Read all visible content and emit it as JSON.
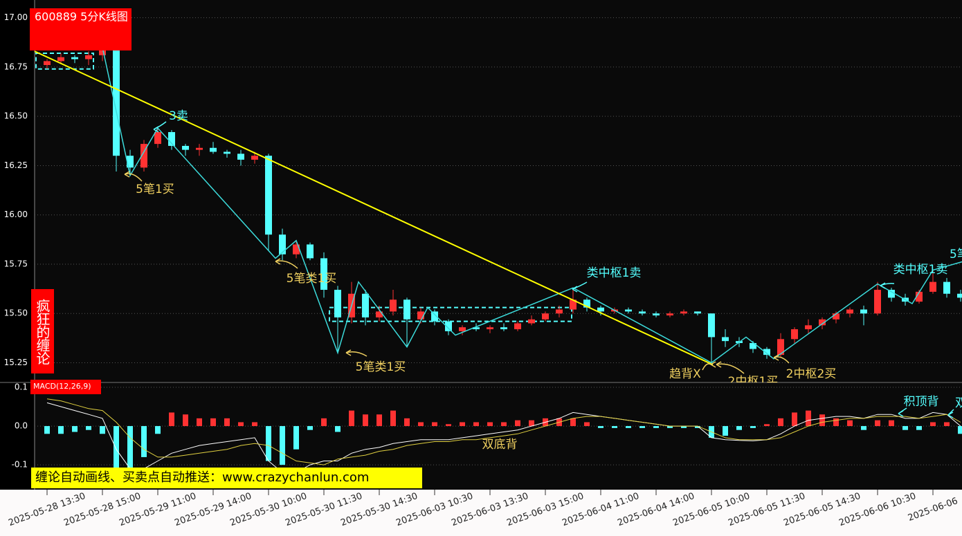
{
  "chart_data": [
    {
      "type": "candlestick",
      "title": "600889 5分K线图",
      "brand": "疯狂的缠论",
      "banner": "缠论自动画线、买卖点自动推送：www.crazychanlun.com",
      "ohlc": [
        [
          16.76,
          16.79,
          16.74,
          16.78
        ],
        [
          16.78,
          16.82,
          16.77,
          16.8
        ],
        [
          16.8,
          16.81,
          16.77,
          16.79
        ],
        [
          16.79,
          16.83,
          16.76,
          16.81
        ],
        [
          16.81,
          16.87,
          16.78,
          16.85
        ],
        [
          16.85,
          16.86,
          16.22,
          16.3
        ],
        [
          16.3,
          16.33,
          16.2,
          16.24
        ],
        [
          16.24,
          16.38,
          16.22,
          16.36
        ],
        [
          16.36,
          16.44,
          16.34,
          16.42
        ],
        [
          16.42,
          16.43,
          16.33,
          16.35
        ],
        [
          16.35,
          16.36,
          16.3,
          16.33
        ],
        [
          16.33,
          16.36,
          16.3,
          16.34
        ],
        [
          16.34,
          16.37,
          16.31,
          16.32
        ],
        [
          16.32,
          16.33,
          16.29,
          16.31
        ],
        [
          16.31,
          16.33,
          16.25,
          16.28
        ],
        [
          16.28,
          16.32,
          16.26,
          16.3
        ],
        [
          16.3,
          16.31,
          15.82,
          15.9
        ],
        [
          15.9,
          15.93,
          15.77,
          15.8
        ],
        [
          15.8,
          15.87,
          15.78,
          15.85
        ],
        [
          15.85,
          15.86,
          15.77,
          15.78
        ],
        [
          15.78,
          15.81,
          15.58,
          15.62
        ],
        [
          15.62,
          15.64,
          15.3,
          15.48
        ],
        [
          15.48,
          15.66,
          15.45,
          15.6
        ],
        [
          15.6,
          15.62,
          15.44,
          15.48
        ],
        [
          15.48,
          15.54,
          15.46,
          15.51
        ],
        [
          15.51,
          15.62,
          15.49,
          15.57
        ],
        [
          15.57,
          15.58,
          15.33,
          15.47
        ],
        [
          15.47,
          15.53,
          15.45,
          15.51
        ],
        [
          15.51,
          15.52,
          15.44,
          15.46
        ],
        [
          15.46,
          15.47,
          15.39,
          15.41
        ],
        [
          15.41,
          15.44,
          15.39,
          15.43
        ],
        [
          15.43,
          15.45,
          15.41,
          15.42
        ],
        [
          15.42,
          15.44,
          15.4,
          15.43
        ],
        [
          15.43,
          15.45,
          15.41,
          15.42
        ],
        [
          15.42,
          15.46,
          15.41,
          15.45
        ],
        [
          15.45,
          15.49,
          15.44,
          15.47
        ],
        [
          15.47,
          15.51,
          15.46,
          15.5
        ],
        [
          15.5,
          15.54,
          15.48,
          15.52
        ],
        [
          15.52,
          15.63,
          15.5,
          15.57
        ],
        [
          15.57,
          15.58,
          15.51,
          15.53
        ],
        [
          15.53,
          15.54,
          15.49,
          15.51
        ],
        [
          15.51,
          15.53,
          15.5,
          15.52
        ],
        [
          15.52,
          15.53,
          15.5,
          15.51
        ],
        [
          15.51,
          15.52,
          15.49,
          15.5
        ],
        [
          15.5,
          15.51,
          15.48,
          15.49
        ],
        [
          15.49,
          15.51,
          15.48,
          15.5
        ],
        [
          15.5,
          15.52,
          15.49,
          15.51
        ],
        [
          15.51,
          15.51,
          15.49,
          15.5
        ],
        [
          15.5,
          15.5,
          15.25,
          15.38
        ],
        [
          15.38,
          15.42,
          15.33,
          15.36
        ],
        [
          15.36,
          15.38,
          15.33,
          15.35
        ],
        [
          15.35,
          15.36,
          15.3,
          15.32
        ],
        [
          15.32,
          15.33,
          15.27,
          15.29
        ],
        [
          15.29,
          15.4,
          15.28,
          15.37
        ],
        [
          15.37,
          15.43,
          15.35,
          15.42
        ],
        [
          15.42,
          15.47,
          15.4,
          15.44
        ],
        [
          15.44,
          15.48,
          15.42,
          15.47
        ],
        [
          15.47,
          15.51,
          15.45,
          15.5
        ],
        [
          15.5,
          15.53,
          15.48,
          15.52
        ],
        [
          15.52,
          15.54,
          15.44,
          15.5
        ],
        [
          15.5,
          15.66,
          15.49,
          15.62
        ],
        [
          15.62,
          15.63,
          15.56,
          15.58
        ],
        [
          15.58,
          15.6,
          15.54,
          15.56
        ],
        [
          15.56,
          15.62,
          15.55,
          15.61
        ],
        [
          15.61,
          15.72,
          15.6,
          15.66
        ],
        [
          15.66,
          15.68,
          15.58,
          15.6
        ],
        [
          15.6,
          15.62,
          15.56,
          15.58
        ]
      ],
      "colors": {
        "up": "#ff3232",
        "down": "#54ffff"
      },
      "xlim": [
        -0.9,
        66.1
      ],
      "ylim": [
        15.15,
        17.09
      ],
      "yticks": [
        {
          "value": 15.25,
          "label": "15.25"
        },
        {
          "value": 15.5,
          "label": "15.50"
        },
        {
          "value": 15.75,
          "label": "15.75"
        },
        {
          "value": 16,
          "label": "16.00"
        },
        {
          "value": 16.25,
          "label": "16.25"
        },
        {
          "value": 16.5,
          "label": "16.50"
        },
        {
          "value": 16.75,
          "label": "16.75"
        },
        {
          "value": 17,
          "label": "17.00"
        }
      ],
      "grid": true,
      "strokes": {
        "color": "#3cdcdc",
        "x": [
          4,
          6,
          8,
          16.5,
          18,
          21,
          22.5,
          26,
          27.5,
          29.5,
          38,
          48,
          50.5,
          52.5,
          60,
          62.5,
          64,
          66.5
        ],
        "values": [
          16.85,
          16.2,
          16.44,
          15.78,
          15.87,
          15.3,
          15.66,
          15.33,
          15.53,
          15.39,
          15.63,
          15.25,
          15.38,
          15.27,
          15.65,
          15.55,
          15.72,
          15.77
        ]
      },
      "trend": {
        "color": "#ffff00",
        "x": [
          -0.9,
          48.1
        ],
        "values": [
          16.83,
          15.24
        ]
      },
      "pivot_color": "#54ffff",
      "pivots": [
        {
          "x": [
            -0.8,
            3.35
          ],
          "y": [
            16.74,
            16.82
          ]
        },
        {
          "x": [
            20.4,
            37.9
          ],
          "y": [
            15.46,
            15.53
          ]
        }
      ],
      "annotations": [
        {
          "text": "3卖",
          "color": "#54ffff"
        },
        {
          "text": "5笔1买",
          "color": "#f0d060"
        },
        {
          "text": "5笔类1买",
          "color": "#f0d060"
        },
        {
          "text": "5笔类1买",
          "color": "#f0d060"
        },
        {
          "text": "类中枢1卖",
          "color": "#54ffff"
        },
        {
          "text": "趋背X",
          "color": "#f0d060"
        },
        {
          "text": "2中枢1买",
          "color": "#f0d060"
        },
        {
          "text": "2中枢2买",
          "color": "#f0d060"
        },
        {
          "text": "类中枢1卖",
          "color": "#54ffff"
        },
        {
          "text": "5笔",
          "color": "#54ffff"
        }
      ]
    },
    {
      "type": "macd",
      "title": "MACD(12,26,9)",
      "xlim": [
        -0.9,
        66.1
      ],
      "ylim": [
        -0.164,
        0.1125
      ],
      "yticks": [
        -0.1,
        {
          "value": 0,
          "label": "0.0"
        },
        0.1
      ],
      "grid": true,
      "histogram": {
        "colors": {
          "up": "#ff3232",
          "down": "#54ffff"
        },
        "values": [
          -0.02,
          -0.02,
          -0.015,
          -0.01,
          -0.02,
          -0.11,
          -0.11,
          -0.08,
          -0.02,
          0.035,
          0.03,
          0.02,
          0.02,
          0.02,
          0.01,
          0.01,
          -0.09,
          -0.1,
          -0.06,
          -0.01,
          0.02,
          -0.015,
          0.04,
          0.03,
          0.03,
          0.04,
          0.02,
          0.01,
          0.01,
          0.005,
          0.01,
          0.01,
          0.01,
          0.01,
          0.015,
          0.015,
          0.02,
          0.02,
          0.02,
          0.01,
          -0.005,
          -0.005,
          -0.005,
          -0.005,
          -0.005,
          -0.005,
          -0.005,
          -0.005,
          -0.03,
          -0.025,
          -0.01,
          -0.005,
          0.005,
          0.02,
          0.035,
          0.04,
          0.03,
          0.02,
          0.015,
          -0.01,
          0.015,
          0.015,
          -0.01,
          -0.01,
          0.01,
          0.01,
          -0.02
        ]
      },
      "series": [
        {
          "color": "#ffffff",
          "values": [
            0.06,
            0.05,
            0.04,
            0.03,
            0.02,
            -0.06,
            -0.11,
            -0.11,
            -0.09,
            -0.07,
            -0.06,
            -0.05,
            -0.045,
            -0.04,
            -0.035,
            -0.03,
            -0.09,
            -0.12,
            -0.12,
            -0.1,
            -0.09,
            -0.09,
            -0.07,
            -0.06,
            -0.055,
            -0.045,
            -0.04,
            -0.035,
            -0.035,
            -0.035,
            -0.03,
            -0.025,
            -0.02,
            -0.015,
            -0.01,
            0,
            0.01,
            0.02,
            0.035,
            0.03,
            0.025,
            0.02,
            0.015,
            0.01,
            0.005,
            0,
            0,
            0,
            -0.03,
            -0.035,
            -0.037,
            -0.038,
            -0.035,
            -0.02,
            0,
            0.015,
            0.02,
            0.025,
            0.025,
            0.02,
            0.03,
            0.03,
            0.02,
            0.02,
            0.035,
            0.03,
            0
          ]
        },
        {
          "color": "#e0d040",
          "values": [
            0.07,
            0.065,
            0.055,
            0.045,
            0.04,
            0.01,
            -0.03,
            -0.06,
            -0.08,
            -0.08,
            -0.075,
            -0.07,
            -0.065,
            -0.06,
            -0.05,
            -0.045,
            -0.05,
            -0.07,
            -0.09,
            -0.095,
            -0.1,
            -0.085,
            -0.08,
            -0.075,
            -0.065,
            -0.06,
            -0.05,
            -0.045,
            -0.04,
            -0.04,
            -0.035,
            -0.035,
            -0.03,
            -0.025,
            -0.02,
            -0.01,
            0,
            0.01,
            0.02,
            0.025,
            0.025,
            0.02,
            0.015,
            0.01,
            0.005,
            0,
            0,
            0,
            -0.015,
            -0.03,
            -0.035,
            -0.035,
            -0.035,
            -0.03,
            -0.015,
            0,
            0.01,
            0.015,
            0.02,
            0.02,
            0.025,
            0.025,
            0.025,
            0.02,
            0.025,
            0.03,
            0.01
          ]
        }
      ],
      "xticks": [
        {
          "value": 0,
          "label": "2025-05-28 13:30"
        },
        {
          "value": 4,
          "label": "2025-05-28 15:00"
        },
        {
          "value": 8,
          "label": "2025-05-29 11:00"
        },
        {
          "value": 12,
          "label": "2025-05-29 14:00"
        },
        {
          "value": 16,
          "label": "2025-05-30 10:00"
        },
        {
          "value": 20,
          "label": "2025-05-30 11:30"
        },
        {
          "value": 24,
          "label": "2025-05-30 14:30"
        },
        {
          "value": 28,
          "label": "2025-06-03 10:30"
        },
        {
          "value": 32,
          "label": "2025-06-03 13:30"
        },
        {
          "value": 36,
          "label": "2025-06-03 15:00"
        },
        {
          "value": 40,
          "label": "2025-06-04 11:00"
        },
        {
          "value": 44,
          "label": "2025-06-04 14:00"
        },
        {
          "value": 48,
          "label": "2025-06-05 10:00"
        },
        {
          "value": 52,
          "label": "2025-06-05 11:30"
        },
        {
          "value": 56,
          "label": "2025-06-05 14:30"
        },
        {
          "value": 60,
          "label": "2025-06-06 10:30"
        },
        {
          "value": 64,
          "label": "2025-06-06"
        }
      ],
      "annotations": [
        {
          "text": "双底背",
          "color": "#f0d060"
        },
        {
          "text": "积顶背",
          "color": "#54ffff"
        },
        {
          "text": "双",
          "color": "#54ffff"
        }
      ]
    }
  ]
}
